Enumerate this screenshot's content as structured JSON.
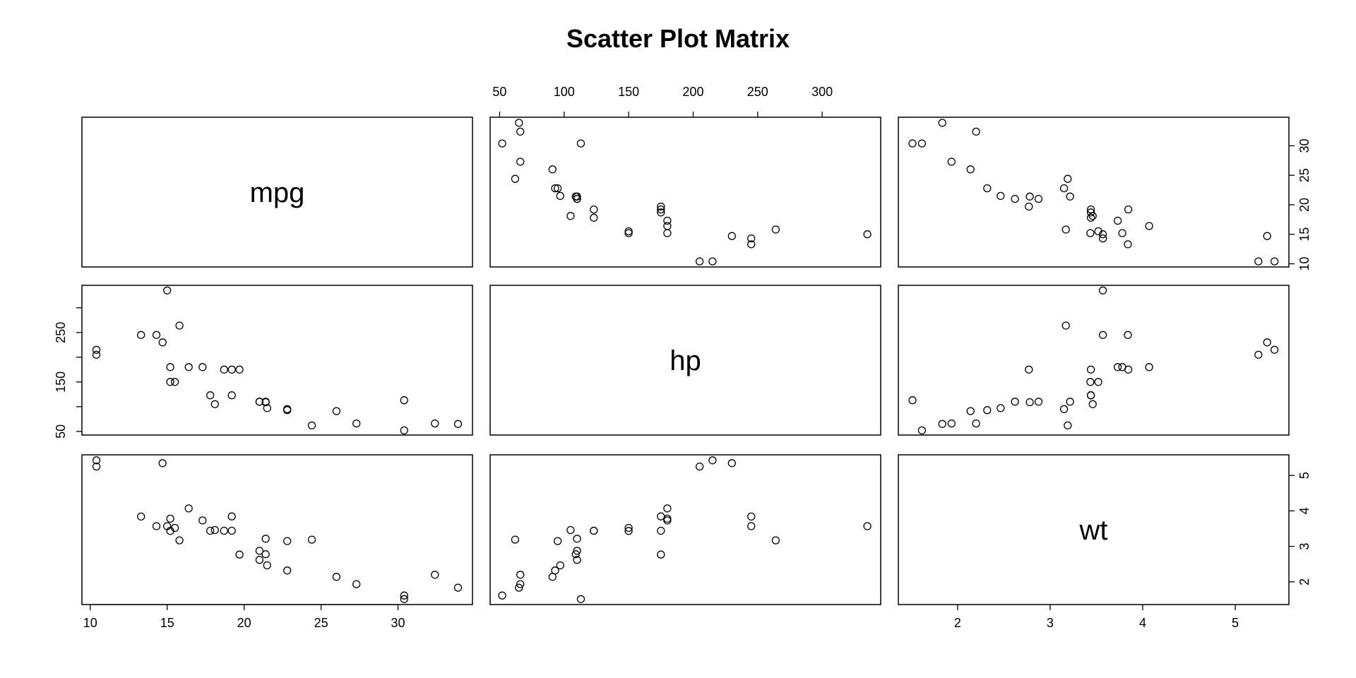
{
  "title": "Scatter Plot Matrix",
  "chart_data": {
    "type": "scatter",
    "variables": [
      "mpg",
      "hp",
      "wt"
    ],
    "grid": false,
    "axes": {
      "mpg": {
        "lim": [
          9.46,
          34.84
        ],
        "ticks": [
          10,
          15,
          20,
          25,
          30
        ]
      },
      "hp": {
        "lim": [
          42.64,
          345.36
        ],
        "ticks": [
          50,
          100,
          150,
          200,
          250,
          300
        ],
        "left_ticks": [
          50,
          150,
          250
        ]
      },
      "wt": {
        "lim": [
          1.36,
          5.58
        ],
        "ticks": [
          2,
          3,
          4,
          5
        ]
      }
    },
    "tick_labels": {
      "mpg": [
        "10",
        "15",
        "20",
        "25",
        "30"
      ],
      "hp": [
        "50",
        "100",
        "150",
        "200",
        "250",
        "300"
      ],
      "hp_left": [
        "50",
        "150",
        "250"
      ],
      "wt": [
        "2",
        "3",
        "4",
        "5"
      ]
    },
    "tick_axes": {
      "panel_bottom": "mpg",
      "panel_top": "hp",
      "panel_right_top": "mpg",
      "panel_left_middle": "hp",
      "panel_right_bottom": "wt",
      "panel_bottom_right": "wt"
    },
    "points": {
      "mpg": [
        21.0,
        21.0,
        22.8,
        21.4,
        18.7,
        18.1,
        14.3,
        24.4,
        22.8,
        19.2,
        17.8,
        16.4,
        17.3,
        15.2,
        10.4,
        10.4,
        14.7,
        32.4,
        30.4,
        33.9,
        21.5,
        15.5,
        15.2,
        13.3,
        19.2,
        27.3,
        26.0,
        30.4,
        15.8,
        19.7,
        15.0,
        21.4
      ],
      "hp": [
        110,
        110,
        93,
        110,
        175,
        105,
        245,
        62,
        95,
        123,
        123,
        180,
        180,
        180,
        205,
        215,
        230,
        66,
        52,
        65,
        97,
        150,
        150,
        245,
        175,
        66,
        91,
        113,
        264,
        175,
        335,
        109
      ],
      "wt": [
        2.62,
        2.875,
        2.32,
        3.215,
        3.44,
        3.46,
        3.57,
        3.19,
        3.15,
        3.44,
        3.44,
        4.07,
        3.73,
        3.78,
        5.25,
        5.424,
        5.345,
        2.2,
        1.615,
        1.835,
        2.465,
        3.52,
        3.435,
        3.84,
        3.845,
        1.935,
        2.14,
        1.513,
        3.17,
        2.77,
        3.57,
        2.78
      ]
    }
  }
}
